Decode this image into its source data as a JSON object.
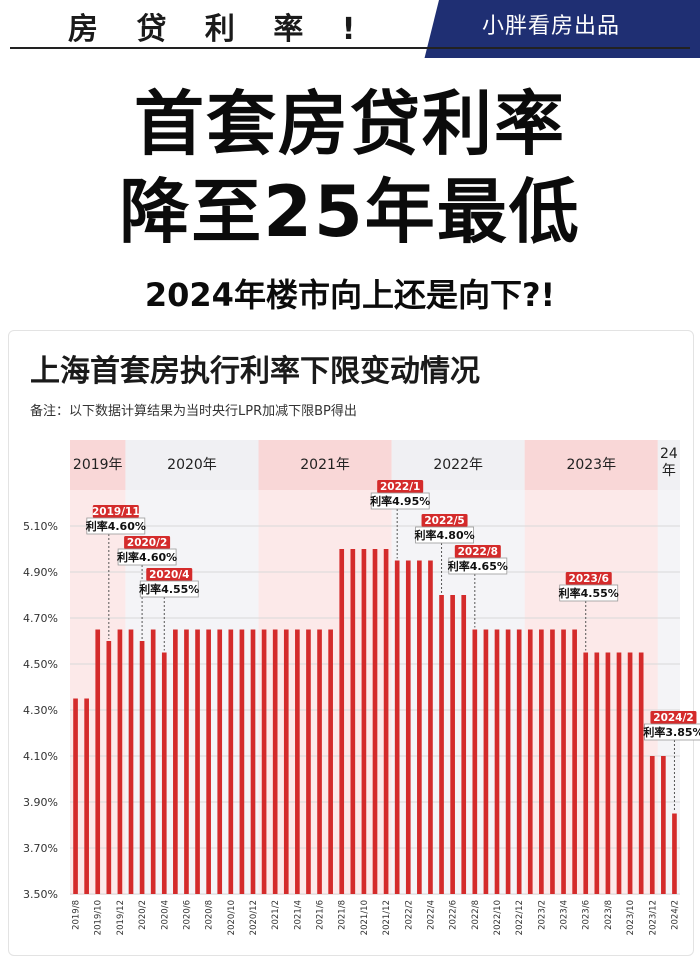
{
  "header": {
    "top_label": "房 贷 利 率 !",
    "brand": "小胖看房出品",
    "headline_line1": "首套房贷利率",
    "headline_line2": "降至25年最低",
    "subheadline": "2024年楼市向上还是向下?!"
  },
  "colors": {
    "bar": "#d42b2b",
    "band_shaded": "#f9d7d7",
    "band_plain": "#f0f0f3",
    "brand_bg": "#1f2f73",
    "annotation_head": "#d42b2b"
  },
  "chart_data": {
    "type": "bar",
    "title": "上海首套房执行利率下限变动情况",
    "note": "备注：以下数据计算结果为当时央行LPR加减下限BP得出",
    "ylim": [
      3.5,
      5.2
    ],
    "yticks": [
      "3.50%",
      "3.70%",
      "3.90%",
      "4.10%",
      "4.30%",
      "4.50%",
      "4.70%",
      "4.90%",
      "5.10%"
    ],
    "bands": [
      {
        "label": "2019年",
        "start": 0,
        "end": 5,
        "shaded": true
      },
      {
        "label": "2020年",
        "start": 5,
        "end": 17,
        "shaded": false
      },
      {
        "label": "2021年",
        "start": 17,
        "end": 29,
        "shaded": true
      },
      {
        "label": "2022年",
        "start": 29,
        "end": 41,
        "shaded": false
      },
      {
        "label": "2023年",
        "start": 41,
        "end": 53,
        "shaded": true
      },
      {
        "label": "24\n年",
        "start": 53,
        "end": 55,
        "shaded": false
      }
    ],
    "categories": [
      "2019/8",
      "2019/9",
      "2019/10",
      "2019/11",
      "2019/12",
      "2020/1",
      "2020/2",
      "2020/3",
      "2020/4",
      "2020/5",
      "2020/6",
      "2020/7",
      "2020/8",
      "2020/9",
      "2020/10",
      "2020/11",
      "2020/12",
      "2021/1",
      "2021/2",
      "2021/3",
      "2021/4",
      "2021/5",
      "2021/6",
      "2021/7",
      "2021/8",
      "2021/9",
      "2021/10",
      "2021/11",
      "2021/12",
      "2022/1",
      "2022/2",
      "2022/3",
      "2022/4",
      "2022/5",
      "2022/6",
      "2022/7",
      "2022/8",
      "2022/9",
      "2022/10",
      "2022/11",
      "2022/12",
      "2023/1",
      "2023/2",
      "2023/3",
      "2023/4",
      "2023/5",
      "2023/6",
      "2023/7",
      "2023/8",
      "2023/9",
      "2023/10",
      "2023/11",
      "2023/12",
      "2024/1",
      "2024/2"
    ],
    "values": [
      4.35,
      4.35,
      4.65,
      4.6,
      4.65,
      4.65,
      4.6,
      4.65,
      4.55,
      4.65,
      4.65,
      4.65,
      4.65,
      4.65,
      4.65,
      4.65,
      4.65,
      4.65,
      4.65,
      4.65,
      4.65,
      4.65,
      4.65,
      4.65,
      5.0,
      5.0,
      5.0,
      5.0,
      5.0,
      4.95,
      4.95,
      4.95,
      4.95,
      4.8,
      4.8,
      4.8,
      4.65,
      4.65,
      4.65,
      4.65,
      4.65,
      4.65,
      4.65,
      4.65,
      4.65,
      4.65,
      4.55,
      4.55,
      4.55,
      4.55,
      4.55,
      4.55,
      4.1,
      4.1,
      3.85
    ],
    "xtick_labels": [
      "2019/8",
      "2019/10",
      "2019/12",
      "2020/2",
      "2020/4",
      "2020/6",
      "2020/8",
      "2020/10",
      "2020/12",
      "2021/2",
      "2021/4",
      "2021/6",
      "2021/8",
      "2021/10",
      "2021/12",
      "2022/2",
      "2022/4",
      "2022/6",
      "2022/8",
      "2022/10",
      "2022/12",
      "2023/2",
      "2023/4",
      "2023/6",
      "2023/8",
      "2023/10",
      "2023/12",
      "2024/2"
    ],
    "annotations": [
      {
        "date": "2019/11",
        "text": "利率4.60%",
        "index": 3
      },
      {
        "date": "2020/2",
        "text": "利率4.60%",
        "index": 6
      },
      {
        "date": "2020/4",
        "text": "利率4.55%",
        "index": 8
      },
      {
        "date": "2022/1",
        "text": "利率4.95%",
        "index": 29
      },
      {
        "date": "2022/5",
        "text": "利率4.80%",
        "index": 33
      },
      {
        "date": "2022/8",
        "text": "利率4.65%",
        "index": 36
      },
      {
        "date": "2023/6",
        "text": "利率4.55%",
        "index": 46
      },
      {
        "date": "2024/2",
        "text": "利率3.85%",
        "index": 54
      }
    ]
  }
}
